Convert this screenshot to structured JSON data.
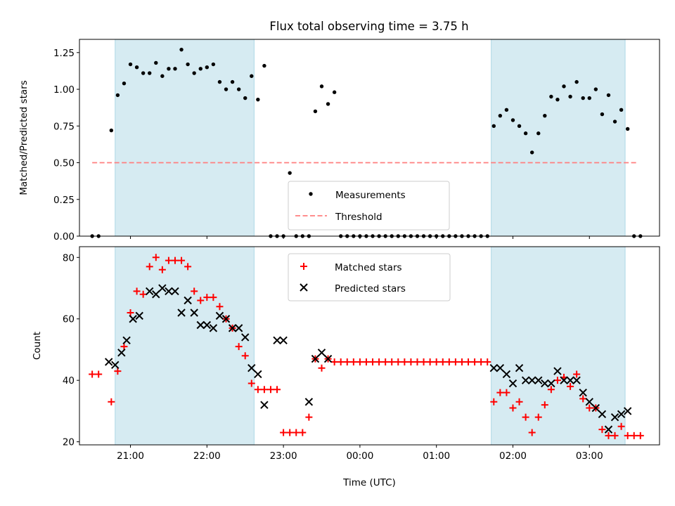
{
  "chart_data": [
    {
      "type": "scatter",
      "title": "Flux total observing time = 3.75 h",
      "xlabel": "",
      "ylabel": "Matched/Predicted stars",
      "ylim": [
        0,
        1.34
      ],
      "yticks": [
        "0.00",
        "0.25",
        "0.50",
        "0.75",
        "1.00",
        "1.25"
      ],
      "ytick_values": [
        0,
        0.25,
        0.5,
        0.75,
        1.0,
        1.25
      ],
      "xlim": [
        "20:20",
        "03:55"
      ],
      "xticks": [
        "21:00",
        "22:00",
        "23:00",
        "00:00",
        "01:00",
        "02:00",
        "03:00"
      ],
      "xtick_labels_visible": false,
      "shaded_intervals": [
        [
          "20:48",
          "22:37"
        ],
        [
          "01:43",
          "03:28"
        ]
      ],
      "legend": {
        "position": "lower center",
        "entries": [
          "Measurements",
          "Threshold"
        ]
      },
      "threshold": {
        "name": "Threshold",
        "value": 0.5,
        "x_range": [
          "20:30",
          "03:38"
        ],
        "color": "#ff7f7f"
      },
      "series": [
        {
          "name": "Measurements",
          "color": "#000000",
          "x": [
            "20:30",
            "20:35",
            "20:45",
            "20:50",
            "20:55",
            "21:00",
            "21:05",
            "21:10",
            "21:15",
            "21:20",
            "21:25",
            "21:30",
            "21:35",
            "21:40",
            "21:45",
            "21:50",
            "21:55",
            "22:00",
            "22:05",
            "22:10",
            "22:15",
            "22:20",
            "22:25",
            "22:30",
            "22:35",
            "22:40",
            "22:45",
            "22:50",
            "22:55",
            "23:00",
            "23:05",
            "23:10",
            "23:15",
            "23:20",
            "23:25",
            "23:30",
            "23:35",
            "23:40",
            "23:45",
            "23:50",
            "23:55",
            "00:00",
            "00:05",
            "00:10",
            "00:15",
            "00:20",
            "00:25",
            "00:30",
            "00:35",
            "00:40",
            "00:45",
            "00:50",
            "00:55",
            "01:00",
            "01:05",
            "01:10",
            "01:15",
            "01:20",
            "01:25",
            "01:30",
            "01:35",
            "01:40",
            "01:45",
            "01:50",
            "01:55",
            "02:00",
            "02:05",
            "02:10",
            "02:15",
            "02:20",
            "02:25",
            "02:30",
            "02:35",
            "02:40",
            "02:45",
            "02:50",
            "02:55",
            "03:00",
            "03:05",
            "03:10",
            "03:15",
            "03:20",
            "03:25",
            "03:30",
            "03:35",
            "03:40"
          ],
          "y": [
            0,
            0,
            0.72,
            0.96,
            1.04,
            1.17,
            1.15,
            1.11,
            1.11,
            1.18,
            1.09,
            1.14,
            1.14,
            1.27,
            1.17,
            1.11,
            1.14,
            1.15,
            1.17,
            1.05,
            1.0,
            1.05,
            1.0,
            0.94,
            1.09,
            0.93,
            1.16,
            0,
            0,
            0,
            0.43,
            0,
            0,
            0,
            0.85,
            1.02,
            0.9,
            0.98,
            0,
            0,
            0,
            0,
            0,
            0,
            0,
            0,
            0,
            0,
            0,
            0,
            0,
            0,
            0,
            0,
            0,
            0,
            0,
            0,
            0,
            0,
            0,
            0,
            0.75,
            0.82,
            0.86,
            0.79,
            0.75,
            0.7,
            0.57,
            0.7,
            0.82,
            0.95,
            0.93,
            1.02,
            0.95,
            1.05,
            0.94,
            0.94,
            1.0,
            0.83,
            0.96,
            0.78,
            0.86,
            0.73,
            0,
            0
          ]
        }
      ]
    },
    {
      "type": "scatter",
      "title": "",
      "xlabel": "Time (UTC)",
      "ylabel": "Count",
      "ylim": [
        19,
        83.5
      ],
      "yticks": [
        "20",
        "40",
        "60",
        "80"
      ],
      "ytick_values": [
        20,
        40,
        60,
        80
      ],
      "xlim": [
        "20:20",
        "03:55"
      ],
      "xticks": [
        "21:00",
        "22:00",
        "23:00",
        "00:00",
        "01:00",
        "02:00",
        "03:00"
      ],
      "shaded_intervals": [
        [
          "20:48",
          "22:37"
        ],
        [
          "01:43",
          "03:28"
        ]
      ],
      "legend": {
        "position": "upper center",
        "entries": [
          "Matched stars",
          "Predicted stars"
        ]
      },
      "series": [
        {
          "name": "Matched stars",
          "marker": "+",
          "color": "#ff0000",
          "x": [
            "20:30",
            "20:35",
            "20:45",
            "20:50",
            "20:55",
            "21:00",
            "21:05",
            "21:10",
            "21:15",
            "21:20",
            "21:25",
            "21:30",
            "21:35",
            "21:40",
            "21:45",
            "21:50",
            "21:55",
            "22:00",
            "22:05",
            "22:10",
            "22:15",
            "22:20",
            "22:25",
            "22:30",
            "22:35",
            "22:40",
            "22:45",
            "22:50",
            "22:55",
            "23:00",
            "23:05",
            "23:10",
            "23:15",
            "23:20",
            "23:25",
            "23:30",
            "23:35",
            "23:40",
            "23:45",
            "23:50",
            "23:55",
            "00:00",
            "00:05",
            "00:10",
            "00:15",
            "00:20",
            "00:25",
            "00:30",
            "00:35",
            "00:40",
            "00:45",
            "00:50",
            "00:55",
            "01:00",
            "01:05",
            "01:10",
            "01:15",
            "01:20",
            "01:25",
            "01:30",
            "01:35",
            "01:40",
            "01:45",
            "01:50",
            "01:55",
            "02:00",
            "02:05",
            "02:10",
            "02:15",
            "02:20",
            "02:25",
            "02:30",
            "02:35",
            "02:40",
            "02:45",
            "02:50",
            "02:55",
            "03:00",
            "03:05",
            "03:10",
            "03:15",
            "03:20",
            "03:25",
            "03:30",
            "03:35",
            "03:40"
          ],
          "y": [
            42,
            42,
            33,
            43,
            51,
            62,
            69,
            68,
            77,
            80,
            76,
            79,
            79,
            79,
            77,
            69,
            66,
            67,
            67,
            64,
            60,
            57,
            51,
            48,
            39,
            37,
            37,
            37,
            37,
            23,
            23,
            23,
            23,
            28,
            47,
            44,
            47,
            46,
            46,
            46,
            46,
            46,
            46,
            46,
            46,
            46,
            46,
            46,
            46,
            46,
            46,
            46,
            46,
            46,
            46,
            46,
            46,
            46,
            46,
            46,
            46,
            46,
            33,
            36,
            36,
            31,
            33,
            28,
            23,
            28,
            32,
            37,
            40,
            41,
            38,
            42,
            34,
            31,
            31,
            24,
            22,
            22,
            25,
            22,
            22,
            22
          ]
        },
        {
          "name": "Predicted stars",
          "marker": "x",
          "color": "#000000",
          "x": [
            "20:43",
            "20:48",
            "20:53",
            "20:57",
            "21:02",
            "21:07",
            "21:15",
            "21:20",
            "21:25",
            "21:30",
            "21:35",
            "21:40",
            "21:45",
            "21:50",
            "21:55",
            "22:00",
            "22:05",
            "22:10",
            "22:15",
            "22:20",
            "22:25",
            "22:30",
            "22:35",
            "22:40",
            "22:45",
            "22:55",
            "23:00",
            "23:20",
            "23:25",
            "23:30",
            "23:35",
            "01:45",
            "01:50",
            "01:55",
            "02:00",
            "02:05",
            "02:10",
            "02:15",
            "02:20",
            "02:25",
            "02:30",
            "02:35",
            "02:40",
            "02:45",
            "02:50",
            "02:55",
            "03:00",
            "03:05",
            "03:10",
            "03:15",
            "03:20",
            "03:25",
            "03:30"
          ],
          "y": [
            46,
            45,
            49,
            53,
            60,
            61,
            69,
            68,
            70,
            69,
            69,
            62,
            66,
            62,
            58,
            58,
            57,
            61,
            60,
            57,
            57,
            54,
            44,
            42,
            32,
            53,
            53,
            33,
            47,
            49,
            47,
            44,
            44,
            42,
            39,
            44,
            40,
            40,
            40,
            39,
            39,
            43,
            40,
            40,
            40,
            36,
            33,
            31,
            29,
            24,
            28,
            29,
            30
          ]
        }
      ]
    }
  ]
}
